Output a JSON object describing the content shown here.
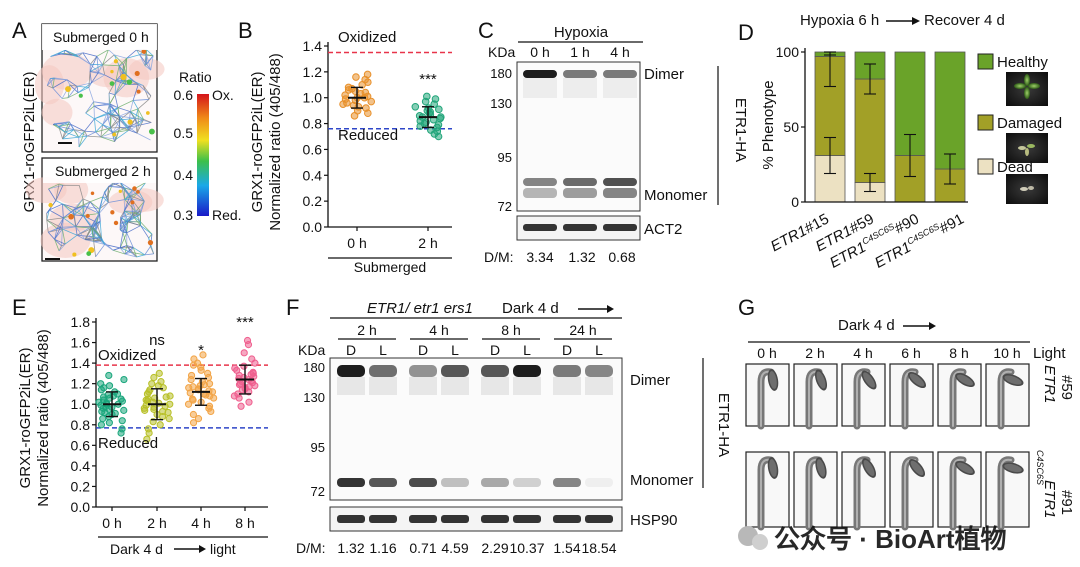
{
  "panelA": {
    "letter": "A",
    "ylabel": "GRX1-roGFP2iL(ER)",
    "img_top_label": "Submerged 0 h",
    "img_bottom_label": "Submerged 2 h",
    "colorbar_title": "Ratio",
    "colorbar_ticks": [
      "0.6",
      "0.5",
      "0.4",
      "0.3"
    ],
    "colorbar_top_label": "Ox.",
    "colorbar_bottom_label": "Red."
  },
  "panelB": {
    "letter": "B",
    "ylabel1": "GRX1-roGFP2iL(ER)",
    "ylabel2": "Normalized ratio (405/488)",
    "oxidized_label": "Oxidized",
    "reduced_label": "Reduced",
    "sig": "***",
    "group_label": "Submerged"
  },
  "panelC": {
    "letter": "C",
    "treatment": "Hypoxia",
    "lanes": [
      "0 h",
      "1 h",
      "4 h"
    ],
    "kda_label": "KDa",
    "markers": [
      "180",
      "130",
      "95",
      "72"
    ],
    "dimer_label": "Dimer",
    "monomer_label": "Monomer",
    "side_label": "ETR1-HA",
    "loading_label": "ACT2",
    "dm_label": "D/M:",
    "dm_values": [
      "3.34",
      "1.32",
      "0.68"
    ]
  },
  "panelD": {
    "letter": "D",
    "title_left": "Hypoxia 6 h",
    "title_right": "Recover 4 d",
    "legend": [
      "Healthy",
      "Damaged",
      "Dead"
    ]
  },
  "panelE": {
    "letter": "E",
    "ylabel1": "GRX1-roGFP2iL(ER)",
    "ylabel2": "Normalized ratio (405/488)",
    "oxidized_label": "Oxidized",
    "reduced_label": "Reduced",
    "sigs": [
      "",
      "ns",
      "*",
      "***"
    ],
    "group_left": "Dark 4 d",
    "group_right": "light"
  },
  "panelF": {
    "letter": "F",
    "genotype": "ETR1/ etr1 ers1",
    "treatment": "Dark 4 d",
    "times": [
      "2 h",
      "4 h",
      "8 h",
      "24 h"
    ],
    "lanes": [
      "D",
      "L",
      "D",
      "L",
      "D",
      "L",
      "D",
      "L"
    ],
    "kda_label": "KDa",
    "markers": [
      "180",
      "130",
      "95",
      "72"
    ],
    "dimer_label": "Dimer",
    "monomer_label": "Monomer",
    "side_label": "ETR1-HA",
    "loading_label": "HSP90",
    "dm_label": "D/M:",
    "dm_values": [
      "1.32",
      "1.16",
      "0.71",
      "4.59",
      "2.29",
      "10.37",
      "1.54",
      "18.54"
    ]
  },
  "panelG": {
    "letter": "G",
    "treatment": "Dark 4 d",
    "times": [
      "0 h",
      "2 h",
      "4 h",
      "6 h",
      "8 h",
      "10 h"
    ],
    "light_label": "Light",
    "row1_label_a": "ETR1",
    "row1_label_b": "#59",
    "row2_label_a": "ETR1",
    "row2_label_sup": "C4SC6S",
    "row2_label_b": "#91"
  },
  "watermark": "公众号 · BioArt植物",
  "colors": {
    "oxidized_line": "#e8344a",
    "reduced_line": "#2e46c8",
    "b_0h": "#e8902a",
    "b_2h": "#22a57a",
    "e_0h": "#1aa67c",
    "e_2h": "#b8c028",
    "e_4h": "#f2a446",
    "e_8h": "#ef5f8e",
    "healthy": "#6aa329",
    "damaged": "#a2a027",
    "dead": "#ece1c2"
  },
  "chart_data": [
    {
      "id": "B",
      "type": "scatter",
      "ylabel": "GRX1-roGFP2iL(ER) Normalized ratio (405/488)",
      "ylim": [
        0.0,
        1.4
      ],
      "yticks": [
        0.0,
        0.2,
        0.4,
        0.6,
        0.8,
        1.0,
        1.2,
        1.4
      ],
      "categories": [
        "0 h",
        "2 h"
      ],
      "oxidized": 1.35,
      "reduced": 0.76,
      "series": [
        {
          "category": "0 h",
          "mean": 1.0,
          "sd": 0.08,
          "values": [
            0.86,
            0.88,
            0.9,
            0.92,
            0.93,
            0.94,
            0.95,
            0.96,
            0.97,
            0.98,
            0.99,
            1.0,
            1.0,
            1.01,
            1.02,
            1.03,
            1.04,
            1.05,
            1.06,
            1.07,
            1.08,
            1.1,
            1.12,
            1.14,
            1.16,
            1.18
          ]
        },
        {
          "category": "2 h",
          "mean": 0.85,
          "sd": 0.08,
          "values": [
            0.7,
            0.72,
            0.74,
            0.75,
            0.77,
            0.78,
            0.79,
            0.8,
            0.81,
            0.82,
            0.83,
            0.84,
            0.85,
            0.85,
            0.86,
            0.87,
            0.88,
            0.89,
            0.9,
            0.91,
            0.92,
            0.93,
            0.95,
            0.97,
            0.99,
            1.01
          ]
        }
      ]
    },
    {
      "id": "D",
      "type": "bar",
      "stacked": true,
      "ylabel": "% Phenotype",
      "ylim": [
        0,
        100
      ],
      "yticks": [
        0,
        50,
        100
      ],
      "categories": [
        "ETR1#15",
        "ETR1#59",
        "ETR1 C4SC6S #90",
        "ETR1 C4SC6S #91"
      ],
      "series": [
        {
          "name": "Dead",
          "values": [
            31,
            13,
            0,
            0
          ],
          "err": [
            12,
            6,
            0,
            0
          ]
        },
        {
          "name": "Damaged",
          "values": [
            66,
            69,
            31,
            22
          ],
          "err": [
            20,
            10,
            14,
            10
          ]
        },
        {
          "name": "Healthy",
          "values": [
            3,
            18,
            69,
            78
          ],
          "err": [
            2,
            0,
            0,
            0
          ]
        }
      ]
    },
    {
      "id": "E",
      "type": "scatter",
      "ylabel": "GRX1-roGFP2iL(ER) Normalized ratio (405/488)",
      "ylim": [
        0.0,
        1.8
      ],
      "yticks": [
        0.0,
        0.2,
        0.4,
        0.6,
        0.8,
        1.0,
        1.2,
        1.4,
        1.6,
        1.8
      ],
      "categories": [
        "0 h",
        "2 h",
        "4 h",
        "8 h"
      ],
      "oxidized": 1.38,
      "reduced": 0.77,
      "series": [
        {
          "category": "0 h",
          "mean": 1.0,
          "sd": 0.12,
          "values": [
            0.72,
            0.76,
            0.8,
            0.82,
            0.84,
            0.86,
            0.88,
            0.9,
            0.91,
            0.92,
            0.93,
            0.94,
            0.95,
            0.96,
            0.97,
            0.98,
            0.99,
            1.0,
            1.0,
            1.01,
            1.02,
            1.03,
            1.04,
            1.05,
            1.06,
            1.07,
            1.08,
            1.09,
            1.1,
            1.12,
            1.14,
            1.16,
            1.18,
            1.2,
            1.24,
            1.28
          ]
        },
        {
          "category": "2 h",
          "mean": 1.0,
          "sd": 0.15,
          "values": [
            0.66,
            0.72,
            0.76,
            0.8,
            0.83,
            0.86,
            0.88,
            0.9,
            0.92,
            0.93,
            0.94,
            0.95,
            0.96,
            0.97,
            0.98,
            0.99,
            1.0,
            1.01,
            1.02,
            1.03,
            1.04,
            1.05,
            1.06,
            1.07,
            1.08,
            1.1,
            1.12,
            1.14,
            1.16,
            1.18,
            1.2,
            1.22,
            1.26,
            1.3
          ]
        },
        {
          "category": "4 h",
          "mean": 1.12,
          "sd": 0.13,
          "values": [
            0.82,
            0.86,
            0.9,
            0.93,
            0.96,
            0.98,
            1.0,
            1.02,
            1.04,
            1.05,
            1.06,
            1.08,
            1.09,
            1.1,
            1.11,
            1.12,
            1.13,
            1.14,
            1.15,
            1.16,
            1.17,
            1.18,
            1.19,
            1.2,
            1.22,
            1.24,
            1.26,
            1.28,
            1.3,
            1.33,
            1.36,
            1.38,
            1.4,
            1.44,
            1.48
          ]
        },
        {
          "category": "8 h",
          "mean": 1.24,
          "sd": 0.14,
          "values": [
            0.98,
            1.02,
            1.06,
            1.08,
            1.1,
            1.12,
            1.14,
            1.15,
            1.16,
            1.17,
            1.18,
            1.19,
            1.2,
            1.21,
            1.22,
            1.23,
            1.24,
            1.25,
            1.26,
            1.27,
            1.28,
            1.29,
            1.3,
            1.31,
            1.33,
            1.35,
            1.37,
            1.4,
            1.44,
            1.5,
            1.58,
            1.62
          ]
        }
      ]
    }
  ]
}
